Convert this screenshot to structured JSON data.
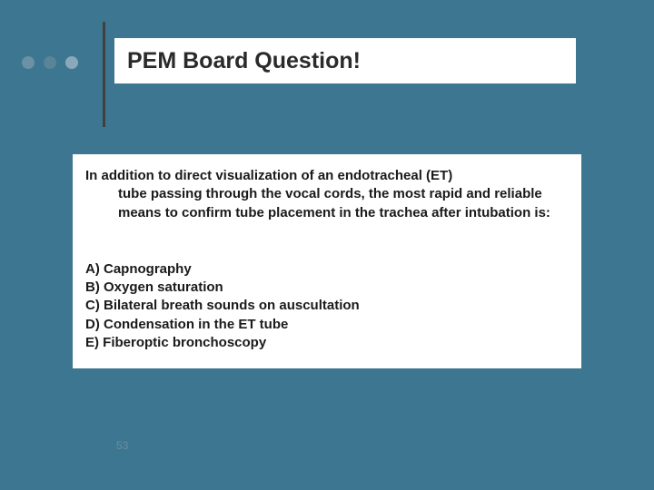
{
  "bullets": {
    "colors": [
      "#6a92a4",
      "#5a8498",
      "#8aa9b8"
    ]
  },
  "vline_color": "#404040",
  "title": "PEM Board Question!",
  "question_first_line": "In addition to direct visualization of an endotracheal (ET)",
  "question_rest": "tube passing through the vocal cords, the most rapid and reliable means to confirm tube placement in the trachea after intubation is:",
  "options": [
    "A) Capnography",
    "B) Oxygen saturation",
    "C) Bilateral breath sounds on auscultation",
    "D) Condensation in the ET tube",
    "E) Fiberoptic bronchoscopy"
  ],
  "page_number": "53",
  "background_color": "#3d7690",
  "box_bg": "#ffffff",
  "text_color": "#1a1a1a",
  "title_fontsize": 25,
  "body_fontsize": 15
}
